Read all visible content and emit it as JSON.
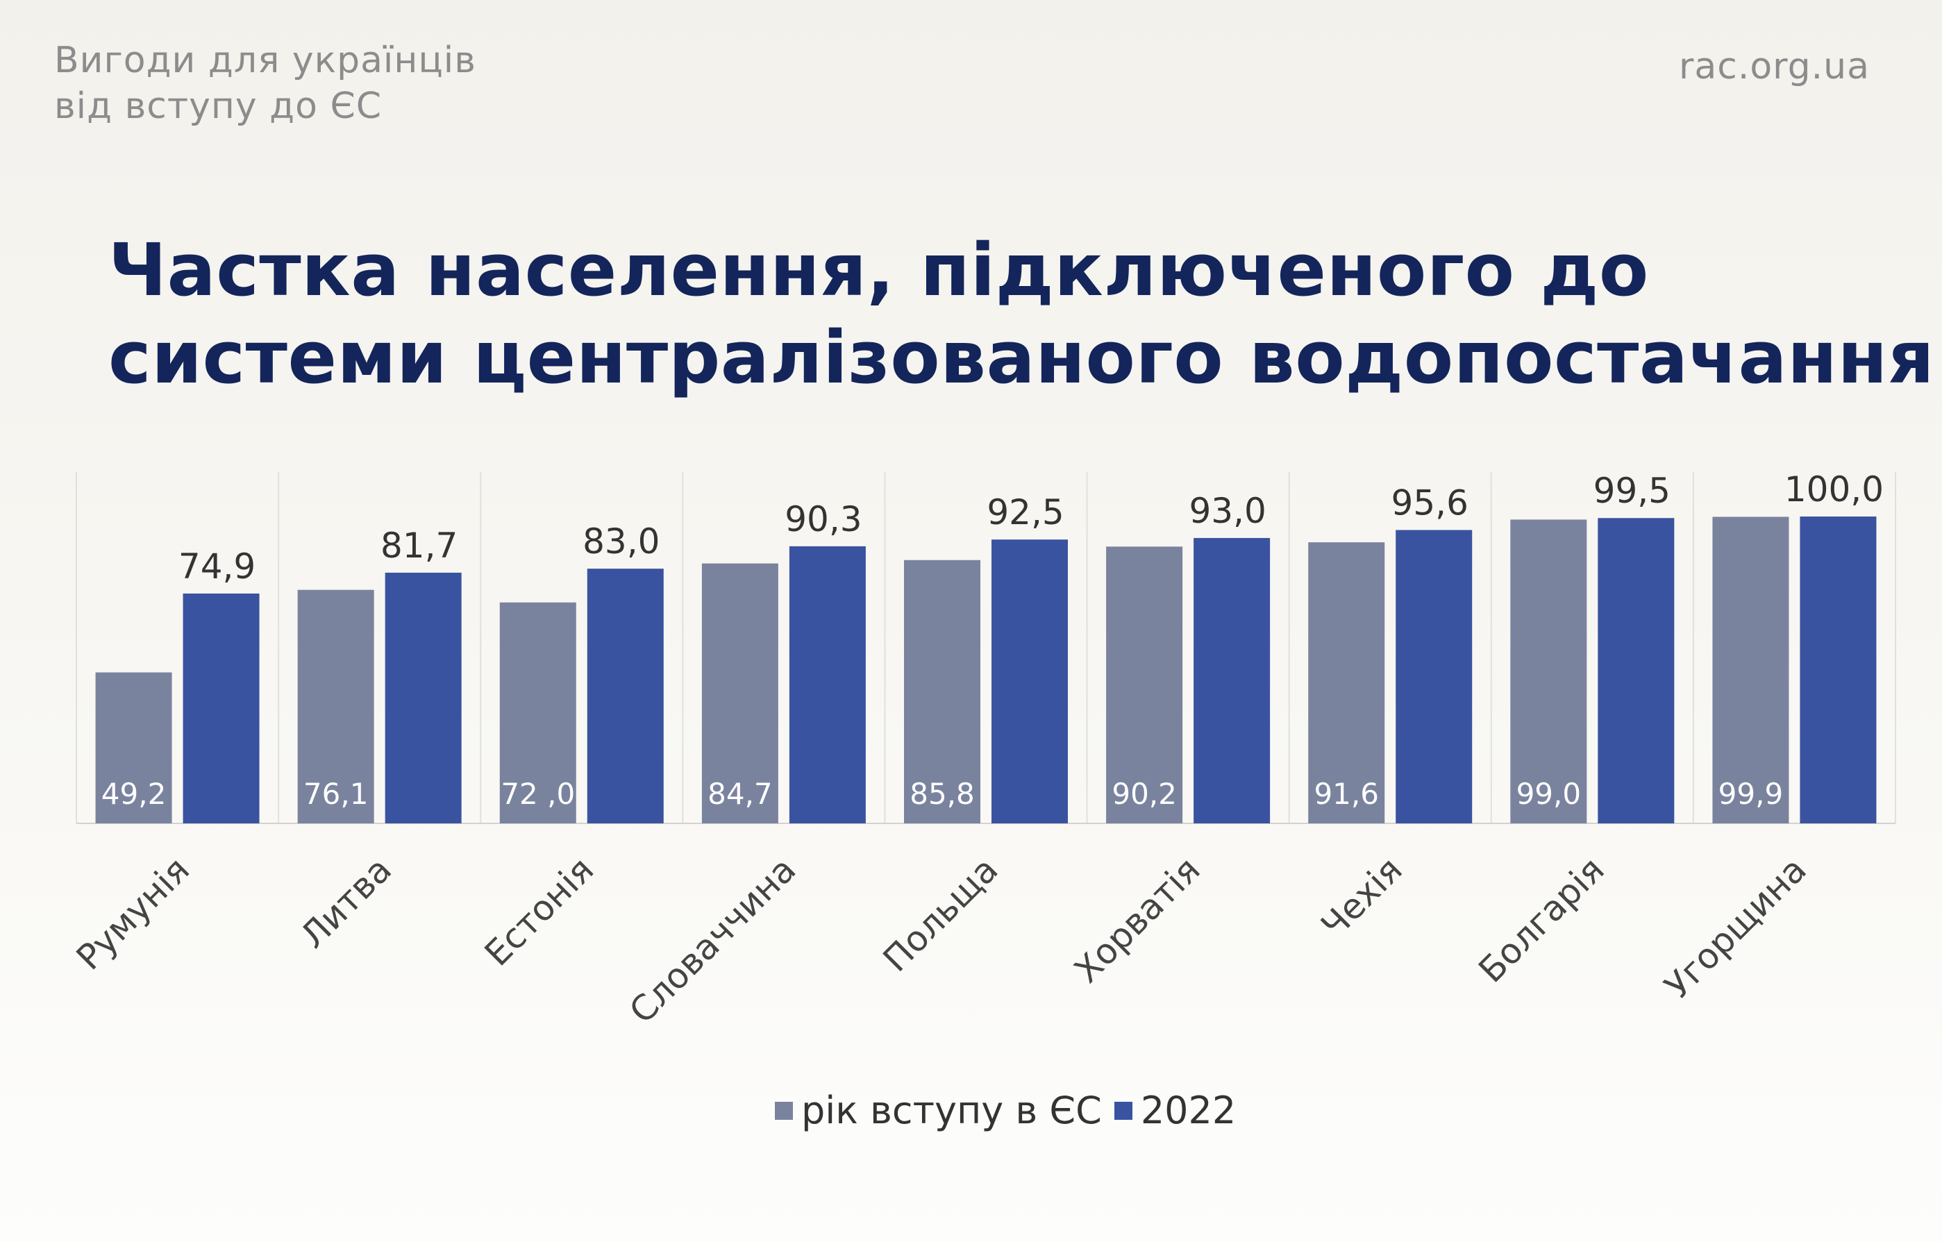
{
  "header": {
    "brand_line1": "Вигоди для українців",
    "brand_line2": "від вступу до ЄС",
    "site": "rac.org.ua"
  },
  "title_line1": "Частка населення, підключеного до",
  "title_line2": "системи централізованого водопостачання",
  "colors": {
    "series_accession": "#7a839e",
    "series_2022": "#3a53a0",
    "title": "#13255a"
  },
  "chart_data": {
    "type": "bar",
    "categories": [
      "Румунія",
      "Литва",
      "Естонія",
      "Словаччина",
      "Польща",
      "Хорватія",
      "Чехія",
      "Болгарія",
      "Угорщина"
    ],
    "series": [
      {
        "name": "рік вступу в ЄС",
        "values": [
          49.2,
          76.1,
          72.0,
          84.7,
          85.8,
          90.2,
          91.6,
          99.0,
          99.9
        ],
        "labels": [
          "49,2",
          "76,1",
          "72 ,0",
          "84,7",
          "85,8",
          "90,2",
          "91,6",
          "99,0",
          "99,9"
        ]
      },
      {
        "name": "2022",
        "values": [
          74.9,
          81.7,
          83.0,
          90.3,
          92.5,
          93.0,
          95.6,
          99.5,
          100.0
        ],
        "labels": [
          "74,9",
          "81,7",
          "83,0",
          "90,3",
          "92,5",
          "93,0",
          "95,6",
          "99,5",
          "100,0"
        ]
      }
    ],
    "legend_position": "bottom"
  }
}
